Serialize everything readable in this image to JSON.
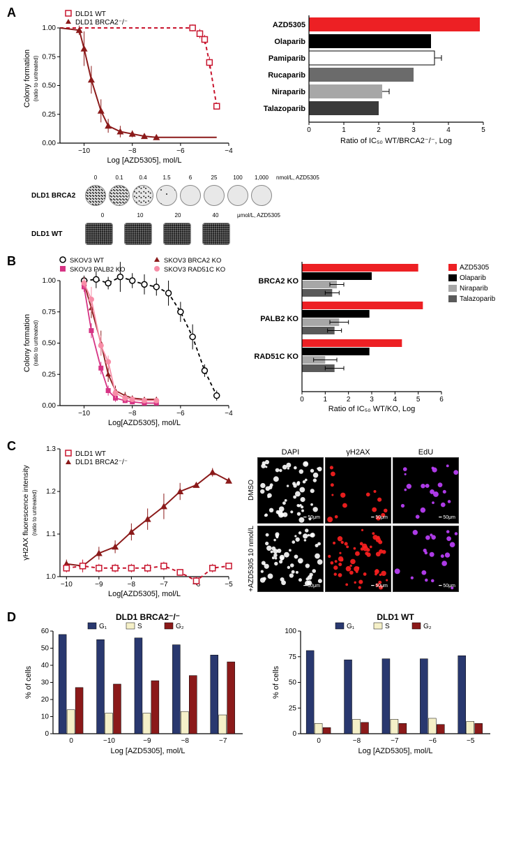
{
  "panelA": {
    "label": "A",
    "leftChart": {
      "type": "line",
      "xlabel": "Log [AZD5305], mol/L",
      "ylabel": "Colony formation (ratio to untreated)",
      "xlim": [
        -11,
        -4
      ],
      "ylim": [
        0,
        1.0
      ],
      "xticks": [
        -10,
        -8,
        -6,
        -4
      ],
      "yticks": [
        0,
        0.25,
        0.5,
        0.75,
        1.0
      ],
      "legend": [
        {
          "label": "DLD1 WT",
          "color": "#c8152e",
          "marker": "open-square",
          "dash": true
        },
        {
          "label": "DLD1 BRCA2⁻/⁻",
          "color": "#8b1a1a",
          "marker": "triangle",
          "dash": false
        }
      ],
      "series_wt": {
        "x": [
          -5.5,
          -5.2,
          -5.0,
          -4.8,
          -4.5
        ],
        "y": [
          1.0,
          0.95,
          0.9,
          0.7,
          0.32
        ],
        "err": [
          0.03,
          0.04,
          0.04,
          0.05,
          0.0
        ]
      },
      "series_ko": {
        "x": [
          -10.2,
          -10,
          -9.7,
          -9.3,
          -9,
          -8.5,
          -8,
          -7.5,
          -7
        ],
        "y": [
          0.98,
          0.82,
          0.55,
          0.28,
          0.15,
          0.1,
          0.08,
          0.06,
          0.05
        ],
        "err": [
          0.04,
          0.15,
          0.12,
          0.1,
          0.06,
          0.05,
          0.03,
          0.02,
          0.02
        ]
      },
      "bg": "#ffffff"
    },
    "rightChart": {
      "type": "bar-horizontal",
      "xlabel": "Ratio of IC₅₀ WT/BRCA2⁻/⁻, Log",
      "xlim": [
        0,
        5
      ],
      "xticks": [
        0,
        1,
        2,
        3,
        4,
        5
      ],
      "bars": [
        {
          "label": "AZD5305",
          "value": 4.9,
          "color": "#ed2024",
          "err": 0
        },
        {
          "label": "Olaparib",
          "value": 3.5,
          "color": "#000000",
          "err": 0
        },
        {
          "label": "Pamiparib",
          "value": 3.6,
          "color": "#ffffff",
          "stroke": "#000",
          "err": 0.2
        },
        {
          "label": "Rucaparib",
          "value": 3.0,
          "color": "#6b6b6b",
          "err": 0
        },
        {
          "label": "Niraparib",
          "value": 2.1,
          "color": "#a7a7a7",
          "err": 0.2
        },
        {
          "label": "Talazoparib",
          "value": 2.0,
          "color": "#3a3a3a",
          "err": 0
        }
      ]
    },
    "wells": {
      "row1": {
        "label": "DLD1 BRCA2",
        "unit": "nmol/L, AZD5305",
        "conc": [
          "0",
          "0.1",
          "0.4",
          "1.5",
          "6",
          "25",
          "100",
          "1,000"
        ],
        "fill_levels": [
          0.95,
          0.9,
          0.6,
          0.2,
          0.05,
          0.02,
          0.01,
          0.01
        ]
      },
      "row2": {
        "label": "DLD1 WT",
        "unit": "μmol/L, AZD5305",
        "conc": [
          "0",
          "10",
          "20",
          "40"
        ],
        "fill_levels": [
          0.95,
          0.95,
          0.9,
          0.85
        ]
      }
    }
  },
  "panelB": {
    "label": "B",
    "leftChart": {
      "type": "line",
      "xlabel": "Log[AZD5305], mol/L",
      "ylabel": "Colony formation (ratio to untreated)",
      "xlim": [
        -11,
        -4
      ],
      "ylim": [
        0,
        1.0
      ],
      "xticks": [
        -10,
        -8,
        -6,
        -4
      ],
      "yticks": [
        0,
        0.25,
        0.5,
        0.75,
        1.0
      ],
      "legend": [
        {
          "label": "SKOV3 WT",
          "color": "#000000",
          "marker": "open-circle",
          "dash": true
        },
        {
          "label": "SKOV3 BRCA2 KO",
          "color": "#8b1a1a",
          "marker": "triangle",
          "dash": false
        },
        {
          "label": "SKOV3 PALB2 KO",
          "color": "#d63384",
          "marker": "square",
          "dash": false
        },
        {
          "label": "SKOV3 RAD51C KO",
          "color": "#f78da7",
          "marker": "circle",
          "dash": false
        }
      ],
      "series_wt": {
        "x": [
          -10,
          -9.5,
          -9,
          -8.5,
          -8,
          -7.5,
          -7,
          -6.5,
          -6,
          -5.5,
          -5,
          -4.5
        ],
        "y": [
          1,
          1.01,
          0.98,
          1.03,
          1,
          0.97,
          0.95,
          0.9,
          0.75,
          0.55,
          0.28,
          0.08
        ],
        "err": [
          0.04,
          0.07,
          0.05,
          0.12,
          0.06,
          0.08,
          0.07,
          0.1,
          0.08,
          0.1,
          0.05,
          0.04
        ]
      },
      "series_brca2": {
        "x": [
          -10,
          -9.7,
          -9.3,
          -9,
          -8.7,
          -8.3,
          -8,
          -7.5,
          -7
        ],
        "y": [
          0.98,
          0.78,
          0.5,
          0.25,
          0.12,
          0.08,
          0.06,
          0.05,
          0.05
        ],
        "err": [
          0.05,
          0.08,
          0.1,
          0.06,
          0.04,
          0.03,
          0.02,
          0.02,
          0.02
        ]
      },
      "series_palb2": {
        "x": [
          -10,
          -9.7,
          -9.3,
          -9,
          -8.7,
          -8.3,
          -8,
          -7.5,
          -7
        ],
        "y": [
          0.95,
          0.6,
          0.3,
          0.12,
          0.06,
          0.04,
          0.03,
          0.02,
          0.02
        ],
        "err": [
          0.04,
          0.06,
          0.05,
          0.04,
          0.03,
          0.02,
          0.02,
          0.02,
          0.02
        ]
      },
      "series_rad51c": {
        "x": [
          -10,
          -9.7,
          -9.3,
          -9,
          -8.7,
          -8.3,
          -8,
          -7.5,
          -7
        ],
        "y": [
          0.98,
          0.85,
          0.48,
          0.35,
          0.1,
          0.06,
          0.05,
          0.04,
          0.04
        ],
        "err": [
          0.04,
          0.1,
          0.08,
          0.05,
          0.04,
          0.03,
          0.02,
          0.02,
          0.02
        ]
      }
    },
    "rightChart": {
      "type": "bar-horizontal-grouped",
      "xlabel": "Ratio of  IC₅₀ WT/KO, Log",
      "xlim": [
        0,
        6
      ],
      "xticks": [
        0,
        1,
        2,
        3,
        4,
        5,
        6
      ],
      "groups": [
        "BRCA2 KO",
        "PALB2 KO",
        "RAD51C KO"
      ],
      "legend": [
        {
          "label": "AZD5305",
          "color": "#ed2024"
        },
        {
          "label": "Olaparib",
          "color": "#000000"
        },
        {
          "label": "Niraparib",
          "color": "#a7a7a7"
        },
        {
          "label": "Talazoparib",
          "color": "#5a5a5a"
        }
      ],
      "data": {
        "BRCA2 KO": [
          {
            "v": 5.0,
            "c": "#ed2024"
          },
          {
            "v": 3.0,
            "c": "#000000"
          },
          {
            "v": 1.5,
            "c": "#a7a7a7",
            "e": 0.3
          },
          {
            "v": 1.3,
            "c": "#5a5a5a",
            "e": 0.3
          }
        ],
        "PALB2 KO": [
          {
            "v": 5.2,
            "c": "#ed2024"
          },
          {
            "v": 2.9,
            "c": "#000000"
          },
          {
            "v": 1.6,
            "c": "#a7a7a7",
            "e": 0.4
          },
          {
            "v": 1.4,
            "c": "#5a5a5a",
            "e": 0.3
          }
        ],
        "RAD51C KO": [
          {
            "v": 4.3,
            "c": "#ed2024"
          },
          {
            "v": 2.9,
            "c": "#000000"
          },
          {
            "v": 1.0,
            "c": "#a7a7a7",
            "e": 0.5
          },
          {
            "v": 1.4,
            "c": "#5a5a5a",
            "e": 0.4
          }
        ]
      }
    }
  },
  "panelC": {
    "label": "C",
    "leftChart": {
      "type": "line",
      "xlabel": "Log[AZD5305], mol/L",
      "ylabel": "γH2AX fluorescence intensity\n(ratio to untreated)",
      "xlim": [
        -10.2,
        -5
      ],
      "ylim": [
        1.0,
        1.3
      ],
      "xticks": [
        -10,
        -9,
        -8,
        -7,
        -6,
        -5
      ],
      "yticks": [
        1.0,
        1.1,
        1.2,
        1.3
      ],
      "legend": [
        {
          "label": "DLD1 WT",
          "color": "#c8152e",
          "marker": "open-square",
          "dash": true
        },
        {
          "label": "DLD1 BRCA2⁻/⁻",
          "color": "#8b1a1a",
          "marker": "triangle",
          "dash": false
        }
      ],
      "series_wt": {
        "x": [
          -10,
          -9.5,
          -9,
          -8.5,
          -8,
          -7.5,
          -7,
          -6.5,
          -6,
          -5.5,
          -5
        ],
        "y": [
          1.02,
          1.025,
          1.02,
          1.02,
          1.02,
          1.02,
          1.025,
          1.01,
          0.99,
          1.02,
          1.025
        ],
        "err": [
          0.01,
          0.015,
          0.01,
          0.01,
          0.01,
          0.01,
          0.01,
          0.005,
          0.01,
          0.01,
          0.005
        ]
      },
      "series_ko": {
        "x": [
          -10,
          -9.5,
          -9,
          -8.5,
          -8,
          -7.5,
          -7,
          -6.5,
          -6,
          -5.5,
          -5
        ],
        "y": [
          1.03,
          1.025,
          1.055,
          1.07,
          1.105,
          1.135,
          1.165,
          1.2,
          1.215,
          1.245,
          1.225
        ],
        "err": [
          0.01,
          0.01,
          0.015,
          0.015,
          0.02,
          0.025,
          0.03,
          0.02,
          0.005,
          0.01,
          0.005
        ]
      }
    },
    "images": {
      "cols": [
        "DAPI",
        "γH2AX",
        "EdU"
      ],
      "rows": [
        "DMSO",
        "+AZD5305 10 nmol/L"
      ],
      "scale": "50μm",
      "dapi_color": "#ffffff",
      "h2ax_color": "#ff2020",
      "edu_color": "#c040ff",
      "densities": [
        [
          60,
          15,
          20
        ],
        [
          60,
          55,
          20
        ]
      ]
    }
  },
  "panelD": {
    "label": "D",
    "charts": [
      {
        "title": "DLD1 BRCA2⁻/⁻",
        "xlabel": "Log [AZD5305], mol/L",
        "ylabel": "% of cells",
        "ylim": [
          0,
          60
        ],
        "yticks": [
          0,
          10,
          20,
          30,
          40,
          50,
          60
        ],
        "xticks": [
          "0",
          "−10",
          "−9",
          "−8",
          "−7"
        ],
        "legend": [
          {
            "l": "G₁",
            "c": "#29386f"
          },
          {
            "l": "S",
            "c": "#f5f0c8"
          },
          {
            "l": "G₂",
            "c": "#8b1a1a"
          }
        ],
        "data": {
          "G1": [
            58,
            55,
            56,
            52,
            46
          ],
          "S": [
            14,
            12,
            12,
            13,
            11
          ],
          "G2": [
            27,
            29,
            31,
            34,
            42
          ]
        }
      },
      {
        "title": "DLD1 WT",
        "xlabel": "Log [AZD5305], mol/L",
        "ylabel": "% of cells",
        "ylim": [
          0,
          100
        ],
        "yticks": [
          0,
          25,
          50,
          75,
          100
        ],
        "xticks": [
          "0",
          "−8",
          "−7",
          "−6",
          "−5"
        ],
        "legend": [
          {
            "l": "G₁",
            "c": "#29386f"
          },
          {
            "l": "S",
            "c": "#f5f0c8"
          },
          {
            "l": "G₂",
            "c": "#8b1a1a"
          }
        ],
        "data": {
          "G1": [
            81,
            72,
            73,
            73,
            76
          ],
          "S": [
            10,
            14,
            14,
            15,
            12
          ],
          "G2": [
            6,
            11,
            10,
            9,
            10
          ]
        }
      }
    ]
  }
}
